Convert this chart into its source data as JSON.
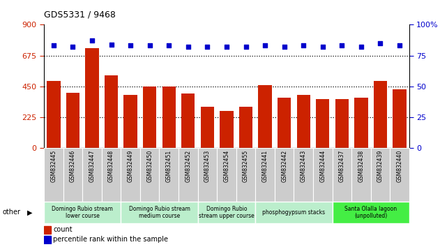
{
  "title": "GDS5331 / 9468",
  "samples": [
    "GSM832445",
    "GSM832446",
    "GSM832447",
    "GSM832448",
    "GSM832449",
    "GSM832450",
    "GSM832451",
    "GSM832452",
    "GSM832453",
    "GSM832454",
    "GSM832455",
    "GSM832441",
    "GSM832442",
    "GSM832443",
    "GSM832444",
    "GSM832437",
    "GSM832438",
    "GSM832439",
    "GSM832440"
  ],
  "counts": [
    490,
    405,
    730,
    530,
    390,
    450,
    450,
    400,
    300,
    270,
    300,
    460,
    370,
    390,
    360,
    360,
    370,
    490,
    430
  ],
  "percentiles": [
    83,
    82,
    87,
    84,
    83,
    83,
    83,
    82,
    82,
    82,
    82,
    83,
    82,
    83,
    82,
    83,
    82,
    85,
    83
  ],
  "groups": [
    {
      "label": "Domingo Rubio stream\nlower course",
      "start": 0,
      "end": 4,
      "color": "#bbeecc"
    },
    {
      "label": "Domingo Rubio stream\nmedium course",
      "start": 4,
      "end": 8,
      "color": "#bbeecc"
    },
    {
      "label": "Domingo Rubio\nstream upper course",
      "start": 8,
      "end": 11,
      "color": "#bbeecc"
    },
    {
      "label": "phosphogypsum stacks",
      "start": 11,
      "end": 15,
      "color": "#bbeecc"
    },
    {
      "label": "Santa Olalla lagoon\n(unpolluted)",
      "start": 15,
      "end": 19,
      "color": "#44ee44"
    }
  ],
  "ylim_left": [
    0,
    900
  ],
  "ylim_right": [
    0,
    100
  ],
  "yticks_left": [
    0,
    225,
    450,
    675,
    900
  ],
  "yticks_right": [
    0,
    25,
    50,
    75,
    100
  ],
  "bar_color": "#cc2200",
  "dot_color": "#0000cc",
  "background_color": "#ffffff",
  "tick_bg_color": "#cccccc",
  "tick_bg_edge": "#ffffff"
}
